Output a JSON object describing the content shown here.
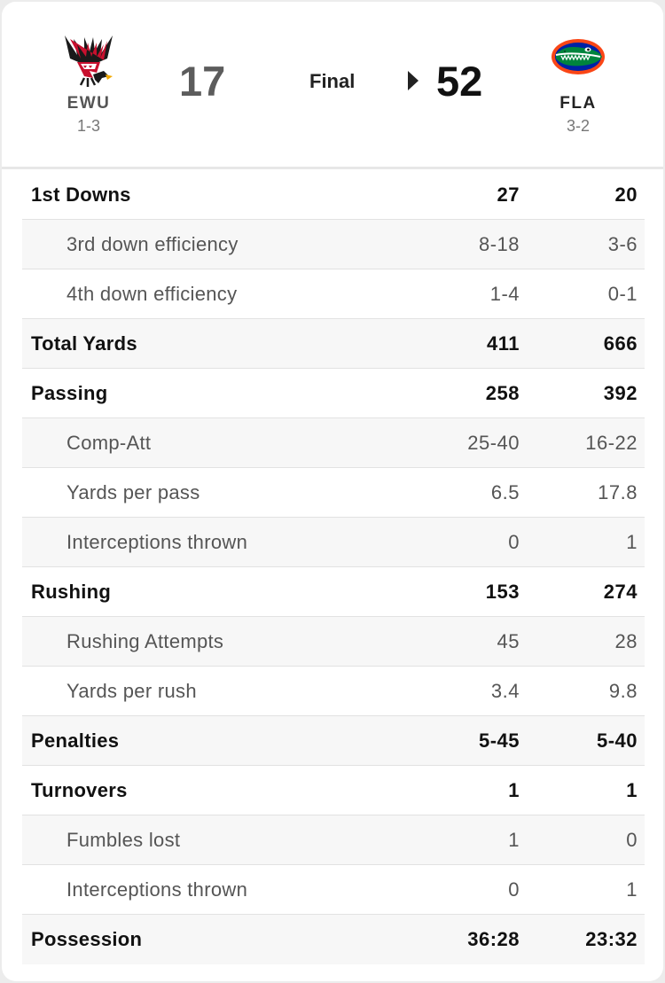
{
  "game": {
    "status": "Final",
    "away": {
      "abbr": "EWU",
      "record": "1-3",
      "score": "17",
      "logo": "eastern-washington-eagle-logo",
      "color": "#c8102e"
    },
    "home": {
      "abbr": "FLA",
      "record": "3-2",
      "score": "52",
      "logo": "florida-gator-logo",
      "color": "#0021a5",
      "winner": true
    }
  },
  "stats": [
    {
      "label": "1st Downs",
      "away": "27",
      "home": "20",
      "type": "main"
    },
    {
      "label": "3rd down efficiency",
      "away": "8-18",
      "home": "3-6",
      "type": "sub"
    },
    {
      "label": "4th down efficiency",
      "away": "1-4",
      "home": "0-1",
      "type": "sub"
    },
    {
      "label": "Total Yards",
      "away": "411",
      "home": "666",
      "type": "main"
    },
    {
      "label": "Passing",
      "away": "258",
      "home": "392",
      "type": "main"
    },
    {
      "label": "Comp-Att",
      "away": "25-40",
      "home": "16-22",
      "type": "sub"
    },
    {
      "label": "Yards per pass",
      "away": "6.5",
      "home": "17.8",
      "type": "sub"
    },
    {
      "label": "Interceptions thrown",
      "away": "0",
      "home": "1",
      "type": "sub"
    },
    {
      "label": "Rushing",
      "away": "153",
      "home": "274",
      "type": "main"
    },
    {
      "label": "Rushing Attempts",
      "away": "45",
      "home": "28",
      "type": "sub"
    },
    {
      "label": "Yards per rush",
      "away": "3.4",
      "home": "9.8",
      "type": "sub"
    },
    {
      "label": "Penalties",
      "away": "5-45",
      "home": "5-40",
      "type": "main"
    },
    {
      "label": "Turnovers",
      "away": "1",
      "home": "1",
      "type": "main"
    },
    {
      "label": "Fumbles lost",
      "away": "1",
      "home": "0",
      "type": "sub"
    },
    {
      "label": "Interceptions thrown",
      "away": "0",
      "home": "1",
      "type": "sub"
    },
    {
      "label": "Possession",
      "away": "36:28",
      "home": "23:32",
      "type": "main"
    }
  ]
}
